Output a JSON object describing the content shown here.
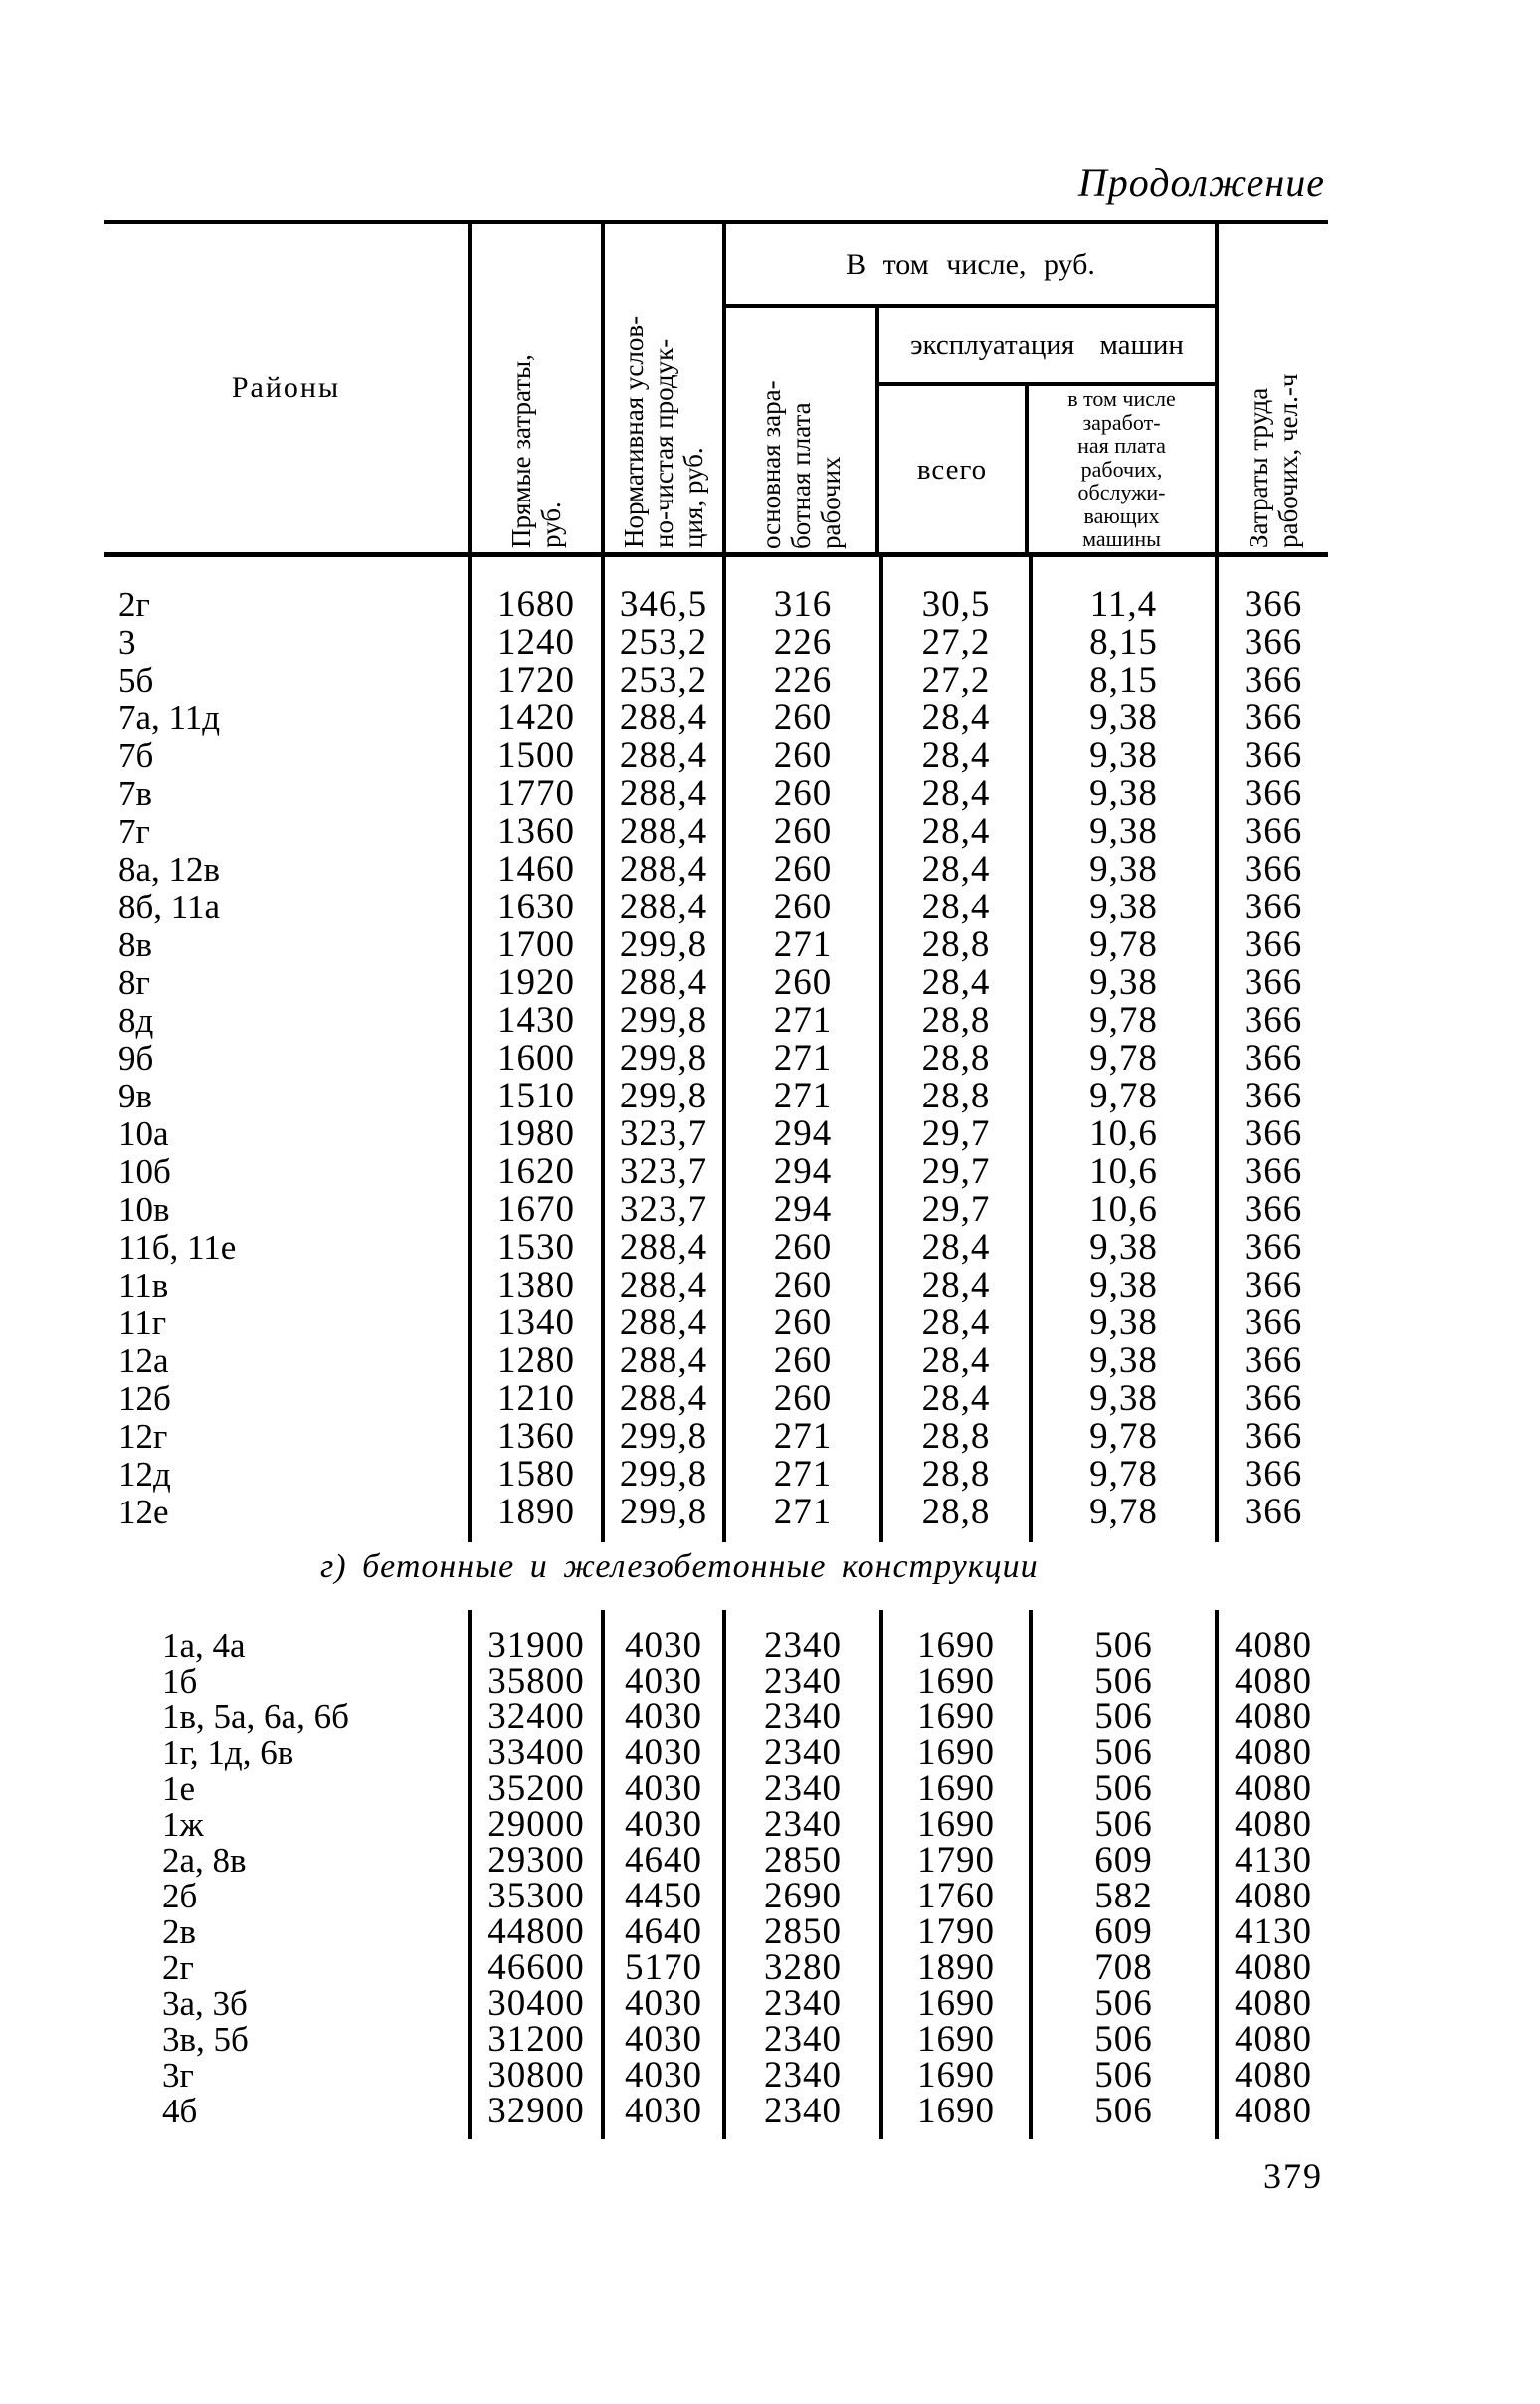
{
  "page": {
    "continuation": "Продолжение",
    "page_number": "379"
  },
  "table": {
    "header": {
      "regions": "Районы",
      "direct_costs": "Прямые затраты,\nруб.",
      "net_output": "Нормативная услов-\nно-чистая продук-\nция, руб.",
      "including_rub": "В том числе, руб.",
      "basic_wage": "основная зара-\nботная плата\nрабочих",
      "machine_operation": "эксплуатация машин",
      "total": "всего",
      "machine_operators_wage": "в том числе\nзаработ-\nная плата\nрабочих,\nобслужи-\nвающих\nмашины",
      "labor_input": "Затраты труда\nрабочих, чел.-ч"
    },
    "section1": {
      "rows": [
        {
          "region": "2г",
          "values": [
            "1680",
            "346,5",
            "316",
            "30,5",
            "11,4",
            "366"
          ]
        },
        {
          "region": "3",
          "values": [
            "1240",
            "253,2",
            "226",
            "27,2",
            "8,15",
            "366"
          ]
        },
        {
          "region": "5б",
          "values": [
            "1720",
            "253,2",
            "226",
            "27,2",
            "8,15",
            "366"
          ]
        },
        {
          "region": "7а, 11д",
          "values": [
            "1420",
            "288,4",
            "260",
            "28,4",
            "9,38",
            "366"
          ]
        },
        {
          "region": "7б",
          "values": [
            "1500",
            "288,4",
            "260",
            "28,4",
            "9,38",
            "366"
          ]
        },
        {
          "region": "7в",
          "values": [
            "1770",
            "288,4",
            "260",
            "28,4",
            "9,38",
            "366"
          ]
        },
        {
          "region": "7г",
          "values": [
            "1360",
            "288,4",
            "260",
            "28,4",
            "9,38",
            "366"
          ]
        },
        {
          "region": "8а, 12в",
          "values": [
            "1460",
            "288,4",
            "260",
            "28,4",
            "9,38",
            "366"
          ]
        },
        {
          "region": "8б, 11а",
          "values": [
            "1630",
            "288,4",
            "260",
            "28,4",
            "9,38",
            "366"
          ]
        },
        {
          "region": "8в",
          "values": [
            "1700",
            "299,8",
            "271",
            "28,8",
            "9,78",
            "366"
          ]
        },
        {
          "region": "8г",
          "values": [
            "1920",
            "288,4",
            "260",
            "28,4",
            "9,38",
            "366"
          ]
        },
        {
          "region": "8д",
          "values": [
            "1430",
            "299,8",
            "271",
            "28,8",
            "9,78",
            "366"
          ]
        },
        {
          "region": "9б",
          "values": [
            "1600",
            "299,8",
            "271",
            "28,8",
            "9,78",
            "366"
          ]
        },
        {
          "region": "9в",
          "values": [
            "1510",
            "299,8",
            "271",
            "28,8",
            "9,78",
            "366"
          ]
        },
        {
          "region": "10а",
          "values": [
            "1980",
            "323,7",
            "294",
            "29,7",
            "10,6",
            "366"
          ]
        },
        {
          "region": "10б",
          "values": [
            "1620",
            "323,7",
            "294",
            "29,7",
            "10,6",
            "366"
          ]
        },
        {
          "region": "10в",
          "values": [
            "1670",
            "323,7",
            "294",
            "29,7",
            "10,6",
            "366"
          ]
        },
        {
          "region": "11б, 11е",
          "values": [
            "1530",
            "288,4",
            "260",
            "28,4",
            "9,38",
            "366"
          ]
        },
        {
          "region": "11в",
          "values": [
            "1380",
            "288,4",
            "260",
            "28,4",
            "9,38",
            "366"
          ]
        },
        {
          "region": "11г",
          "values": [
            "1340",
            "288,4",
            "260",
            "28,4",
            "9,38",
            "366"
          ]
        },
        {
          "region": "12а",
          "values": [
            "1280",
            "288,4",
            "260",
            "28,4",
            "9,38",
            "366"
          ]
        },
        {
          "region": "12б",
          "values": [
            "1210",
            "288,4",
            "260",
            "28,4",
            "9,38",
            "366"
          ]
        },
        {
          "region": "12г",
          "values": [
            "1360",
            "299,8",
            "271",
            "28,8",
            "9,78",
            "366"
          ]
        },
        {
          "region": "12д",
          "values": [
            "1580",
            "299,8",
            "271",
            "28,8",
            "9,78",
            "366"
          ]
        },
        {
          "region": "12е",
          "values": [
            "1890",
            "299,8",
            "271",
            "28,8",
            "9,78",
            "366"
          ]
        }
      ]
    },
    "section2": {
      "heading": "г) бетонные и железобетонные конструкции",
      "rows": [
        {
          "region": "1а, 4а",
          "values": [
            "31900",
            "4030",
            "2340",
            "1690",
            "506",
            "4080"
          ]
        },
        {
          "region": "1б",
          "values": [
            "35800",
            "4030",
            "2340",
            "1690",
            "506",
            "4080"
          ]
        },
        {
          "region": "1в, 5а, 6а, 6б",
          "values": [
            "32400",
            "4030",
            "2340",
            "1690",
            "506",
            "4080"
          ]
        },
        {
          "region": "1г, 1д, 6в",
          "values": [
            "33400",
            "4030",
            "2340",
            "1690",
            "506",
            "4080"
          ]
        },
        {
          "region": "1е",
          "values": [
            "35200",
            "4030",
            "2340",
            "1690",
            "506",
            "4080"
          ]
        },
        {
          "region": "1ж",
          "values": [
            "29000",
            "4030",
            "2340",
            "1690",
            "506",
            "4080"
          ]
        },
        {
          "region": "2а, 8в",
          "values": [
            "29300",
            "4640",
            "2850",
            "1790",
            "609",
            "4130"
          ]
        },
        {
          "region": "2б",
          "values": [
            "35300",
            "4450",
            "2690",
            "1760",
            "582",
            "4080"
          ]
        },
        {
          "region": "2в",
          "values": [
            "44800",
            "4640",
            "2850",
            "1790",
            "609",
            "4130"
          ]
        },
        {
          "region": "2г",
          "values": [
            "46600",
            "5170",
            "3280",
            "1890",
            "708",
            "4080"
          ]
        },
        {
          "region": "3а, 3б",
          "values": [
            "30400",
            "4030",
            "2340",
            "1690",
            "506",
            "4080"
          ]
        },
        {
          "region": "3в, 5б",
          "values": [
            "31200",
            "4030",
            "2340",
            "1690",
            "506",
            "4080"
          ]
        },
        {
          "region": "3г",
          "values": [
            "30800",
            "4030",
            "2340",
            "1690",
            "506",
            "4080"
          ]
        },
        {
          "region": "4б",
          "values": [
            "32900",
            "4030",
            "2340",
            "1690",
            "506",
            "4080"
          ]
        }
      ]
    }
  }
}
